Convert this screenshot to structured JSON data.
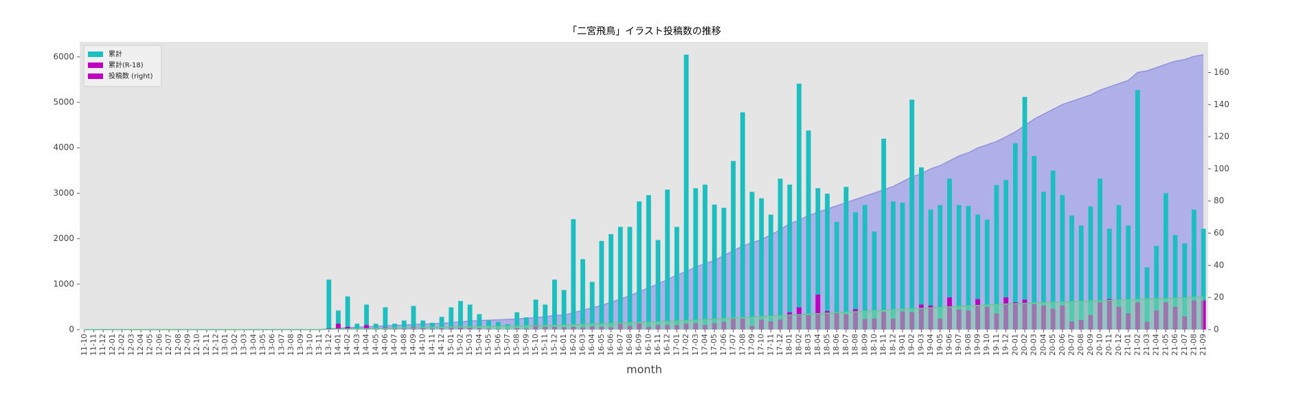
{
  "chart_data": {
    "type": "bar",
    "title": "「二宮飛鳥」イラスト投稿数の推移",
    "x_label": "month",
    "categories": [
      "11-10",
      "11-11",
      "11-12",
      "12-01",
      "12-02",
      "12-03",
      "12-04",
      "12-05",
      "12-06",
      "12-07",
      "12-08",
      "12-09",
      "12-10",
      "12-11",
      "12-12",
      "13-01",
      "13-02",
      "13-03",
      "13-04",
      "13-05",
      "13-06",
      "13-07",
      "13-08",
      "13-09",
      "13-10",
      "13-11",
      "13-12",
      "14-01",
      "14-02",
      "14-03",
      "14-04",
      "14-05",
      "14-06",
      "14-07",
      "14-08",
      "14-09",
      "14-10",
      "14-11",
      "14-12",
      "15-01",
      "15-02",
      "15-03",
      "15-04",
      "15-05",
      "15-06",
      "15-07",
      "15-08",
      "15-09",
      "15-10",
      "15-11",
      "15-12",
      "16-01",
      "16-02",
      "16-03",
      "16-04",
      "16-05",
      "16-06",
      "16-07",
      "16-08",
      "16-09",
      "16-10",
      "16-11",
      "16-12",
      "17-01",
      "17-02",
      "17-03",
      "17-04",
      "17-05",
      "17-06",
      "17-07",
      "17-08",
      "17-09",
      "17-10",
      "17-11",
      "17-12",
      "18-01",
      "18-02",
      "18-03",
      "18-04",
      "18-05",
      "18-06",
      "18-07",
      "18-08",
      "18-09",
      "18-10",
      "18-11",
      "18-12",
      "19-01",
      "19-02",
      "19-03",
      "19-04",
      "19-05",
      "19-06",
      "19-07",
      "19-08",
      "19-09",
      "19-10",
      "19-11",
      "19-12",
      "20-01",
      "20-02",
      "20-03",
      "20-04",
      "20-05",
      "20-06",
      "20-07",
      "20-08",
      "20-09",
      "20-10",
      "20-11",
      "20-12",
      "21-01",
      "21-02",
      "21-03",
      "21-04",
      "21-05",
      "21-06",
      "21-07",
      "21-08",
      "21-09"
    ],
    "series": [
      {
        "name": "累計",
        "type": "bar",
        "color": "#1cbfbf",
        "axis": "y",
        "values": [
          0,
          0,
          0,
          0,
          0,
          0,
          0,
          0,
          0,
          0,
          0,
          0,
          0,
          0,
          0,
          0,
          0,
          0,
          0,
          0,
          0,
          0,
          0,
          0,
          0,
          0,
          1100,
          420,
          730,
          130,
          550,
          130,
          490,
          130,
          200,
          520,
          200,
          150,
          280,
          490,
          630,
          550,
          340,
          200,
          170,
          120,
          380,
          270,
          660,
          550,
          1100,
          870,
          2430,
          1550,
          1050,
          1950,
          2100,
          2260,
          2260,
          2820,
          2960,
          1970,
          3080,
          2260,
          6050,
          3110,
          3190,
          2750,
          2680,
          3710,
          4780,
          3030,
          2890,
          2530,
          3320,
          3190,
          5410,
          4380,
          3110,
          2990,
          2370,
          3140,
          2580,
          2740,
          2160,
          4200,
          2820,
          2790,
          5060,
          3570,
          2640,
          2740,
          3320,
          2740,
          2720,
          2530,
          2420,
          3180,
          3290,
          4100,
          5120,
          3820,
          3030,
          3500,
          2960,
          2510,
          2290,
          2710,
          3320,
          2220,
          2740,
          2290,
          5270,
          1370,
          1840,
          3000,
          2080,
          1900,
          2640,
          2220
        ]
      },
      {
        "name": "累計(R-18)",
        "type": "bar",
        "color": "#bf00bf",
        "axis": "y",
        "values": [
          0,
          0,
          0,
          0,
          0,
          0,
          0,
          0,
          0,
          0,
          0,
          0,
          0,
          0,
          0,
          0,
          0,
          0,
          0,
          0,
          0,
          0,
          0,
          0,
          0,
          0,
          30,
          130,
          60,
          20,
          100,
          30,
          50,
          20,
          30,
          60,
          30,
          20,
          30,
          40,
          50,
          40,
          30,
          20,
          10,
          10,
          30,
          20,
          100,
          60,
          60,
          50,
          60,
          50,
          70,
          60,
          50,
          130,
          80,
          140,
          60,
          100,
          100,
          100,
          130,
          140,
          100,
          140,
          170,
          240,
          240,
          80,
          220,
          180,
          220,
          380,
          490,
          320,
          770,
          410,
          380,
          340,
          450,
          230,
          240,
          390,
          240,
          400,
          380,
          550,
          530,
          240,
          710,
          440,
          420,
          670,
          500,
          350,
          710,
          600,
          660,
          560,
          530,
          460,
          530,
          180,
          210,
          320,
          600,
          670,
          500,
          360,
          600,
          170,
          420,
          600,
          500,
          290,
          640,
          640
        ]
      },
      {
        "name": "投稿数 (right)",
        "type": "area",
        "color": "#b0b0e8",
        "line_color": "#9090dd",
        "legend_color": "#bf00bf",
        "axis": "y2",
        "values": [
          0,
          0,
          0,
          0,
          0,
          0,
          0,
          0,
          0,
          0,
          0,
          0,
          0,
          0,
          0,
          0,
          0,
          0,
          0,
          0,
          0,
          0,
          0,
          0,
          0,
          0,
          0.5,
          0.8,
          1.2,
          1.4,
          1.8,
          2,
          2.4,
          2.6,
          2.8,
          3.2,
          3.4,
          3.6,
          3.9,
          4.3,
          4.8,
          5.3,
          5.6,
          5.9,
          6.1,
          6.3,
          6.6,
          7,
          7.5,
          8,
          8.8,
          9,
          10.5,
          12,
          13.5,
          15,
          17,
          19,
          21,
          23.5,
          26,
          28.5,
          31,
          34,
          36,
          39,
          41,
          43,
          46,
          49,
          52,
          54,
          56,
          59,
          62,
          66,
          68,
          71,
          73,
          75,
          77,
          79,
          81,
          83,
          85,
          87,
          89,
          92,
          95,
          97,
          100,
          102,
          105,
          108,
          110,
          113,
          115,
          117,
          120,
          123,
          127,
          131,
          134,
          137,
          140,
          142,
          144,
          146,
          149,
          151,
          153,
          155,
          160,
          161,
          163,
          165,
          167,
          168,
          170,
          171
        ]
      },
      {
        "type": "area",
        "color": "#7fd4a0",
        "line_color": "#6cc890",
        "axis": "y2",
        "values": [
          0,
          0,
          0,
          0,
          0,
          0,
          0,
          0,
          0,
          0,
          0,
          0,
          0,
          0,
          0,
          0,
          0,
          0,
          0,
          0,
          0,
          0,
          0,
          0,
          0,
          0,
          0.2,
          0.3,
          0.4,
          0.5,
          0.6,
          0.7,
          0.8,
          0.9,
          1,
          1.1,
          1.2,
          1.3,
          1.4,
          1.5,
          1.6,
          1.7,
          1.8,
          1.9,
          2,
          2.1,
          2.2,
          2.3,
          2.4,
          2.5,
          2.6,
          2.8,
          3,
          3.2,
          3.4,
          3.6,
          3.8,
          4,
          4.2,
          4.4,
          4.6,
          4.8,
          5,
          5.3,
          5.6,
          5.9,
          6.2,
          6.5,
          6.8,
          7.1,
          7.4,
          7.7,
          8,
          8.3,
          8.6,
          9,
          9.3,
          9.6,
          9.9,
          10.2,
          10.5,
          10.8,
          11.1,
          11.4,
          11.7,
          12,
          12.3,
          12.6,
          12.9,
          13.2,
          13.5,
          13.8,
          14.1,
          14.4,
          14.7,
          15,
          15.3,
          15.6,
          15.9,
          16.1,
          16.3,
          16.5,
          16.7,
          16.9,
          17.1,
          17.3,
          17.5,
          17.7,
          17.9,
          18.1,
          18.3,
          18.5,
          18.7,
          18.9,
          19.1,
          19.3,
          19.5,
          19.7,
          20,
          20.3
        ]
      }
    ],
    "ylim": [
      0,
      6330
    ],
    "yticks": [
      0,
      1000,
      2000,
      3000,
      4000,
      5000,
      6000
    ],
    "y2lim": [
      0,
      179
    ],
    "y2ticks": [
      0,
      20,
      40,
      60,
      80,
      100,
      120,
      140,
      160
    ],
    "grid": false,
    "legend": "upper left",
    "background": "#e5e5e5"
  }
}
